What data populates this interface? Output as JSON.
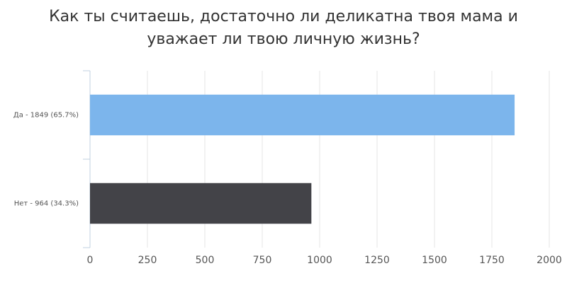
{
  "chart_data": {
    "type": "hbar",
    "title": "Как ты считаешь, достаточно ли деликатна твоя мама и уважает ли твою личную жизнь?",
    "categories": [
      "Да - 1849 (65.7%)",
      "Нет - 964 (34.3%)"
    ],
    "values": [
      1849,
      964
    ],
    "colors": [
      "#7cb5ec",
      "#434348"
    ],
    "xlim": [
      0,
      2000
    ],
    "xticks": [
      0,
      250,
      500,
      750,
      1000,
      1250,
      1500,
      1750,
      2000
    ],
    "grid": true
  }
}
